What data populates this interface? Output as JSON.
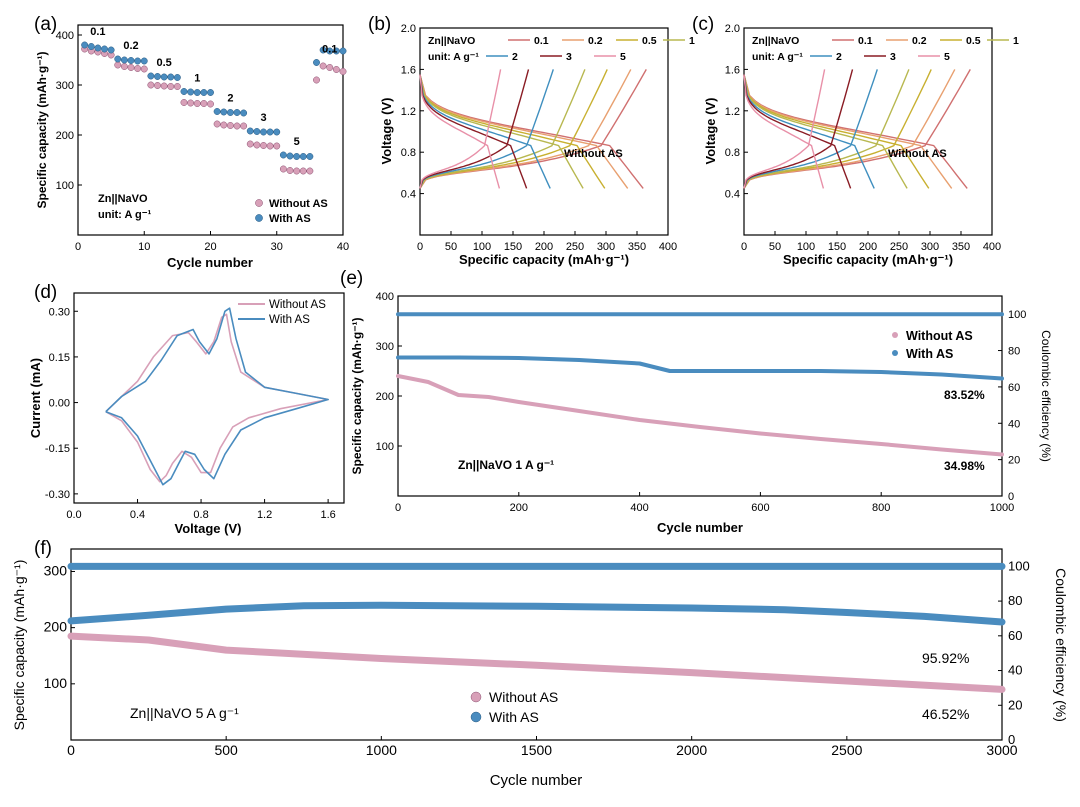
{
  "panels": {
    "a": {
      "label": "(a)",
      "xlabel": "Cycle number",
      "ylabel": "Specific capacity (mAh·g⁻¹)",
      "xticks": [
        "0",
        "10",
        "20",
        "30",
        "40"
      ],
      "yticks": [
        "100",
        "200",
        "300",
        "400"
      ],
      "annot1": "Zn||NaVO",
      "annot2": "unit: A g⁻¹",
      "legend": [
        "Without AS",
        "With AS"
      ],
      "rate_labels": [
        "0.1",
        "0.2",
        "0.5",
        "1",
        "2",
        "3",
        "5",
        "0.1"
      ]
    },
    "b": {
      "label": "(b)",
      "xlabel": "Specific capacity (mAh·g⁻¹)",
      "ylabel": "Voltage (V)",
      "xticks": [
        "0",
        "50",
        "100",
        "150",
        "200",
        "250",
        "300",
        "350",
        "400"
      ],
      "yticks": [
        "0.4",
        "0.8",
        "1.2",
        "1.6",
        "2.0"
      ],
      "legend_title": "Zn||NaVO",
      "legend_unit": "unit: A g⁻¹",
      "rates": [
        "0.1",
        "0.2",
        "0.5",
        "1",
        "2",
        "3",
        "5"
      ],
      "note": "Without AS"
    },
    "c": {
      "label": "(c)",
      "xlabel": "Specific capacity (mAh·g⁻¹)",
      "ylabel": "Voltage (V)",
      "xticks": [
        "0",
        "50",
        "100",
        "150",
        "200",
        "250",
        "300",
        "350",
        "400"
      ],
      "yticks": [
        "0.4",
        "0.8",
        "1.2",
        "1.6",
        "2.0"
      ],
      "legend_title": "Zn||NaVO",
      "legend_unit": "unit: A g⁻¹",
      "rates": [
        "0.1",
        "0.2",
        "0.5",
        "1",
        "2",
        "3",
        "5"
      ],
      "note": "Without AS"
    },
    "d": {
      "label": "(d)",
      "xlabel": "Voltage (V)",
      "ylabel": "Current (mA)",
      "xticks": [
        "0.0",
        "0.4",
        "0.8",
        "1.2",
        "1.6"
      ],
      "yticks": [
        "-0.30",
        "-0.15",
        "0.00",
        "0.15",
        "0.30"
      ],
      "legend": [
        "Without AS",
        "With AS"
      ]
    },
    "e": {
      "label": "(e)",
      "xlabel": "Cycle number",
      "ylabel": "Specific capacity (mAh·g⁻¹)",
      "y2label": "Coulombic efficiency (%)",
      "xticks": [
        "0",
        "200",
        "400",
        "600",
        "800",
        "1000"
      ],
      "yticks": [
        "100",
        "200",
        "300",
        "400"
      ],
      "y2ticks": [
        "0",
        "20",
        "40",
        "60",
        "80",
        "100"
      ],
      "legend": [
        "Without AS",
        "With AS"
      ],
      "annot": "Zn||NaVO  1 A g⁻¹",
      "ret_with": "83.52%",
      "ret_without": "34.98%"
    },
    "f": {
      "label": "(f)",
      "xlabel": "Cycle number",
      "ylabel": "Specific capacity (mAh·g⁻¹)",
      "y2label": "Coulombic efficiency (%)",
      "xticks": [
        "0",
        "500",
        "1000",
        "1500",
        "2000",
        "2500",
        "3000"
      ],
      "yticks": [
        "100",
        "200",
        "300"
      ],
      "y2ticks": [
        "0",
        "20",
        "40",
        "60",
        "80",
        "100"
      ],
      "legend": [
        "Without AS",
        "With AS"
      ],
      "annot": "Zn||NaVO  5 A g⁻¹",
      "ret_with": "95.92%",
      "ret_without": "46.52%"
    }
  },
  "colors": {
    "without": "#d8a0b8",
    "with": "#4a8cbf",
    "rates": [
      "#d07070",
      "#e8a070",
      "#c8b030",
      "#b8b850",
      "#3f8fbf",
      "#8a1c24",
      "#e890a8"
    ]
  },
  "chart_data": [
    {
      "type": "scatter",
      "panel": "a",
      "x_range": [
        0,
        40
      ],
      "ylim": [
        0,
        420
      ],
      "series": [
        {
          "name": "Without AS",
          "segments": [
            {
              "rate": "0.1",
              "x": [
                1,
                2,
                3,
                4,
                5
              ],
              "y": [
                372,
                368,
                366,
                363,
                360
              ]
            },
            {
              "rate": "0.2",
              "x": [
                6,
                7,
                8,
                9,
                10
              ],
              "y": [
                340,
                337,
                335,
                333,
                332
              ]
            },
            {
              "rate": "0.5",
              "x": [
                11,
                12,
                13,
                14,
                15
              ],
              "y": [
                300,
                299,
                298,
                297,
                297
              ]
            },
            {
              "rate": "1",
              "x": [
                16,
                17,
                18,
                19,
                20
              ],
              "y": [
                265,
                264,
                263,
                263,
                262
              ]
            },
            {
              "rate": "2",
              "x": [
                21,
                22,
                23,
                24,
                25
              ],
              "y": [
                222,
                220,
                219,
                218,
                218
              ]
            },
            {
              "rate": "3",
              "x": [
                26,
                27,
                28,
                29,
                30
              ],
              "y": [
                182,
                180,
                179,
                178,
                178
              ]
            },
            {
              "rate": "5",
              "x": [
                31,
                32,
                33,
                34,
                35
              ],
              "y": [
                132,
                129,
                128,
                128,
                128
              ]
            },
            {
              "rate": "0.1",
              "x": [
                36,
                37,
                38,
                39,
                40
              ],
              "y": [
                310,
                338,
                335,
                331,
                327
              ]
            }
          ]
        },
        {
          "name": "With AS",
          "segments": [
            {
              "rate": "0.1",
              "x": [
                1,
                2,
                3,
                4,
                5
              ],
              "y": [
                380,
                377,
                374,
                372,
                370
              ]
            },
            {
              "rate": "0.2",
              "x": [
                6,
                7,
                8,
                9,
                10
              ],
              "y": [
                352,
                350,
                349,
                348,
                348
              ]
            },
            {
              "rate": "0.5",
              "x": [
                11,
                12,
                13,
                14,
                15
              ],
              "y": [
                318,
                317,
                316,
                316,
                315
              ]
            },
            {
              "rate": "1",
              "x": [
                16,
                17,
                18,
                19,
                20
              ],
              "y": [
                287,
                286,
                285,
                285,
                285
              ]
            },
            {
              "rate": "2",
              "x": [
                21,
                22,
                23,
                24,
                25
              ],
              "y": [
                247,
                246,
                245,
                245,
                244
              ]
            },
            {
              "rate": "3",
              "x": [
                26,
                27,
                28,
                29,
                30
              ],
              "y": [
                208,
                207,
                206,
                206,
                206
              ]
            },
            {
              "rate": "5",
              "x": [
                31,
                32,
                33,
                34,
                35
              ],
              "y": [
                160,
                158,
                157,
                157,
                157
              ]
            },
            {
              "rate": "0.1",
              "x": [
                36,
                37,
                38,
                39,
                40
              ],
              "y": [
                345,
                370,
                368,
                368,
                368
              ]
            }
          ]
        }
      ]
    },
    {
      "type": "line",
      "panel": "b",
      "xlim": [
        0,
        400
      ],
      "ylim": [
        0,
        2.0
      ],
      "series": [
        {
          "name": "0.1",
          "discharge_capacity": 360,
          "charge_capacity": 365
        },
        {
          "name": "0.2",
          "discharge_capacity": 335,
          "charge_capacity": 340
        },
        {
          "name": "0.5",
          "discharge_capacity": 298,
          "charge_capacity": 302
        },
        {
          "name": "1",
          "discharge_capacity": 263,
          "charge_capacity": 266
        },
        {
          "name": "2",
          "discharge_capacity": 210,
          "charge_capacity": 215
        },
        {
          "name": "3",
          "discharge_capacity": 172,
          "charge_capacity": 175
        },
        {
          "name": "5",
          "discharge_capacity": 128,
          "charge_capacity": 130
        }
      ]
    },
    {
      "type": "line",
      "panel": "c",
      "xlim": [
        0,
        400
      ],
      "ylim": [
        0,
        2.0
      ],
      "series": [
        {
          "name": "0.1",
          "discharge_capacity": 360,
          "charge_capacity": 365
        },
        {
          "name": "0.2",
          "discharge_capacity": 335,
          "charge_capacity": 340
        },
        {
          "name": "0.5",
          "discharge_capacity": 298,
          "charge_capacity": 302
        },
        {
          "name": "1",
          "discharge_capacity": 263,
          "charge_capacity": 266
        },
        {
          "name": "2",
          "discharge_capacity": 210,
          "charge_capacity": 215
        },
        {
          "name": "3",
          "discharge_capacity": 172,
          "charge_capacity": 175
        },
        {
          "name": "5",
          "discharge_capacity": 128,
          "charge_capacity": 130
        }
      ]
    },
    {
      "type": "line",
      "panel": "d",
      "xlim": [
        0,
        1.7
      ],
      "ylim": [
        -0.33,
        0.36
      ],
      "series": [
        {
          "name": "Without AS",
          "points": [
            [
              0.2,
              -0.03
            ],
            [
              0.3,
              -0.06
            ],
            [
              0.4,
              -0.13
            ],
            [
              0.48,
              -0.22
            ],
            [
              0.54,
              -0.26
            ],
            [
              0.58,
              -0.24
            ],
            [
              0.62,
              -0.2
            ],
            [
              0.68,
              -0.16
            ],
            [
              0.74,
              -0.18
            ],
            [
              0.8,
              -0.23
            ],
            [
              0.86,
              -0.23
            ],
            [
              0.92,
              -0.15
            ],
            [
              1.0,
              -0.08
            ],
            [
              1.1,
              -0.05
            ],
            [
              1.3,
              -0.02
            ],
            [
              1.6,
              0.01
            ],
            [
              1.4,
              0.03
            ],
            [
              1.2,
              0.05
            ],
            [
              1.05,
              0.1
            ],
            [
              0.99,
              0.2
            ],
            [
              0.96,
              0.29
            ],
            [
              0.93,
              0.28
            ],
            [
              0.88,
              0.2
            ],
            [
              0.83,
              0.16
            ],
            [
              0.77,
              0.2
            ],
            [
              0.72,
              0.23
            ],
            [
              0.62,
              0.22
            ],
            [
              0.5,
              0.15
            ],
            [
              0.4,
              0.07
            ],
            [
              0.3,
              0.02
            ],
            [
              0.2,
              -0.03
            ]
          ]
        },
        {
          "name": "With AS",
          "points": [
            [
              0.2,
              -0.03
            ],
            [
              0.3,
              -0.05
            ],
            [
              0.4,
              -0.11
            ],
            [
              0.5,
              -0.21
            ],
            [
              0.56,
              -0.27
            ],
            [
              0.61,
              -0.25
            ],
            [
              0.66,
              -0.2
            ],
            [
              0.7,
              -0.16
            ],
            [
              0.76,
              -0.17
            ],
            [
              0.82,
              -0.22
            ],
            [
              0.88,
              -0.25
            ],
            [
              0.95,
              -0.17
            ],
            [
              1.05,
              -0.09
            ],
            [
              1.2,
              -0.05
            ],
            [
              1.4,
              -0.02
            ],
            [
              1.6,
              0.01
            ],
            [
              1.4,
              0.03
            ],
            [
              1.2,
              0.05
            ],
            [
              1.08,
              0.1
            ],
            [
              1.02,
              0.21
            ],
            [
              0.98,
              0.31
            ],
            [
              0.95,
              0.3
            ],
            [
              0.9,
              0.21
            ],
            [
              0.85,
              0.16
            ],
            [
              0.79,
              0.2
            ],
            [
              0.75,
              0.24
            ],
            [
              0.65,
              0.22
            ],
            [
              0.55,
              0.14
            ],
            [
              0.45,
              0.07
            ],
            [
              0.3,
              0.02
            ],
            [
              0.2,
              -0.03
            ]
          ]
        }
      ]
    },
    {
      "type": "scatter",
      "panel": "e",
      "xlim": [
        0,
        1000
      ],
      "ylim": [
        0,
        400
      ],
      "y2lim": [
        0,
        110
      ],
      "series": [
        {
          "name": "Without AS",
          "axis": "capacity",
          "x": [
            0,
            50,
            100,
            150,
            200,
            300,
            400,
            500,
            600,
            700,
            800,
            900,
            1000
          ],
          "y": [
            240,
            228,
            202,
            198,
            188,
            170,
            152,
            138,
            125,
            114,
            104,
            93,
            83
          ]
        },
        {
          "name": "With AS",
          "axis": "capacity",
          "x": [
            0,
            100,
            200,
            300,
            400,
            450,
            500,
            600,
            700,
            800,
            900,
            1000
          ],
          "y": [
            277,
            277,
            276,
            272,
            265,
            250,
            250,
            250,
            250,
            248,
            243,
            235
          ]
        },
        {
          "name": "With AS CE",
          "axis": "efficiency",
          "x": [
            0,
            1000
          ],
          "y": [
            100,
            100
          ]
        }
      ]
    },
    {
      "type": "scatter",
      "panel": "f",
      "xlim": [
        0,
        3000
      ],
      "ylim": [
        0,
        340
      ],
      "y2lim": [
        0,
        110
      ],
      "series": [
        {
          "name": "Without AS",
          "axis": "capacity",
          "x": [
            0,
            250,
            500,
            1000,
            1500,
            2000,
            2500,
            3000
          ],
          "y": [
            185,
            178,
            160,
            145,
            133,
            120,
            105,
            90
          ]
        },
        {
          "name": "With AS",
          "axis": "capacity",
          "x": [
            0,
            250,
            500,
            750,
            1000,
            1500,
            2000,
            2300,
            2500,
            2750,
            3000
          ],
          "y": [
            212,
            222,
            233,
            239,
            240,
            238,
            235,
            232,
            227,
            220,
            210
          ]
        },
        {
          "name": "With AS CE",
          "axis": "efficiency",
          "x": [
            0,
            3000
          ],
          "y": [
            100,
            100
          ]
        }
      ]
    }
  ]
}
